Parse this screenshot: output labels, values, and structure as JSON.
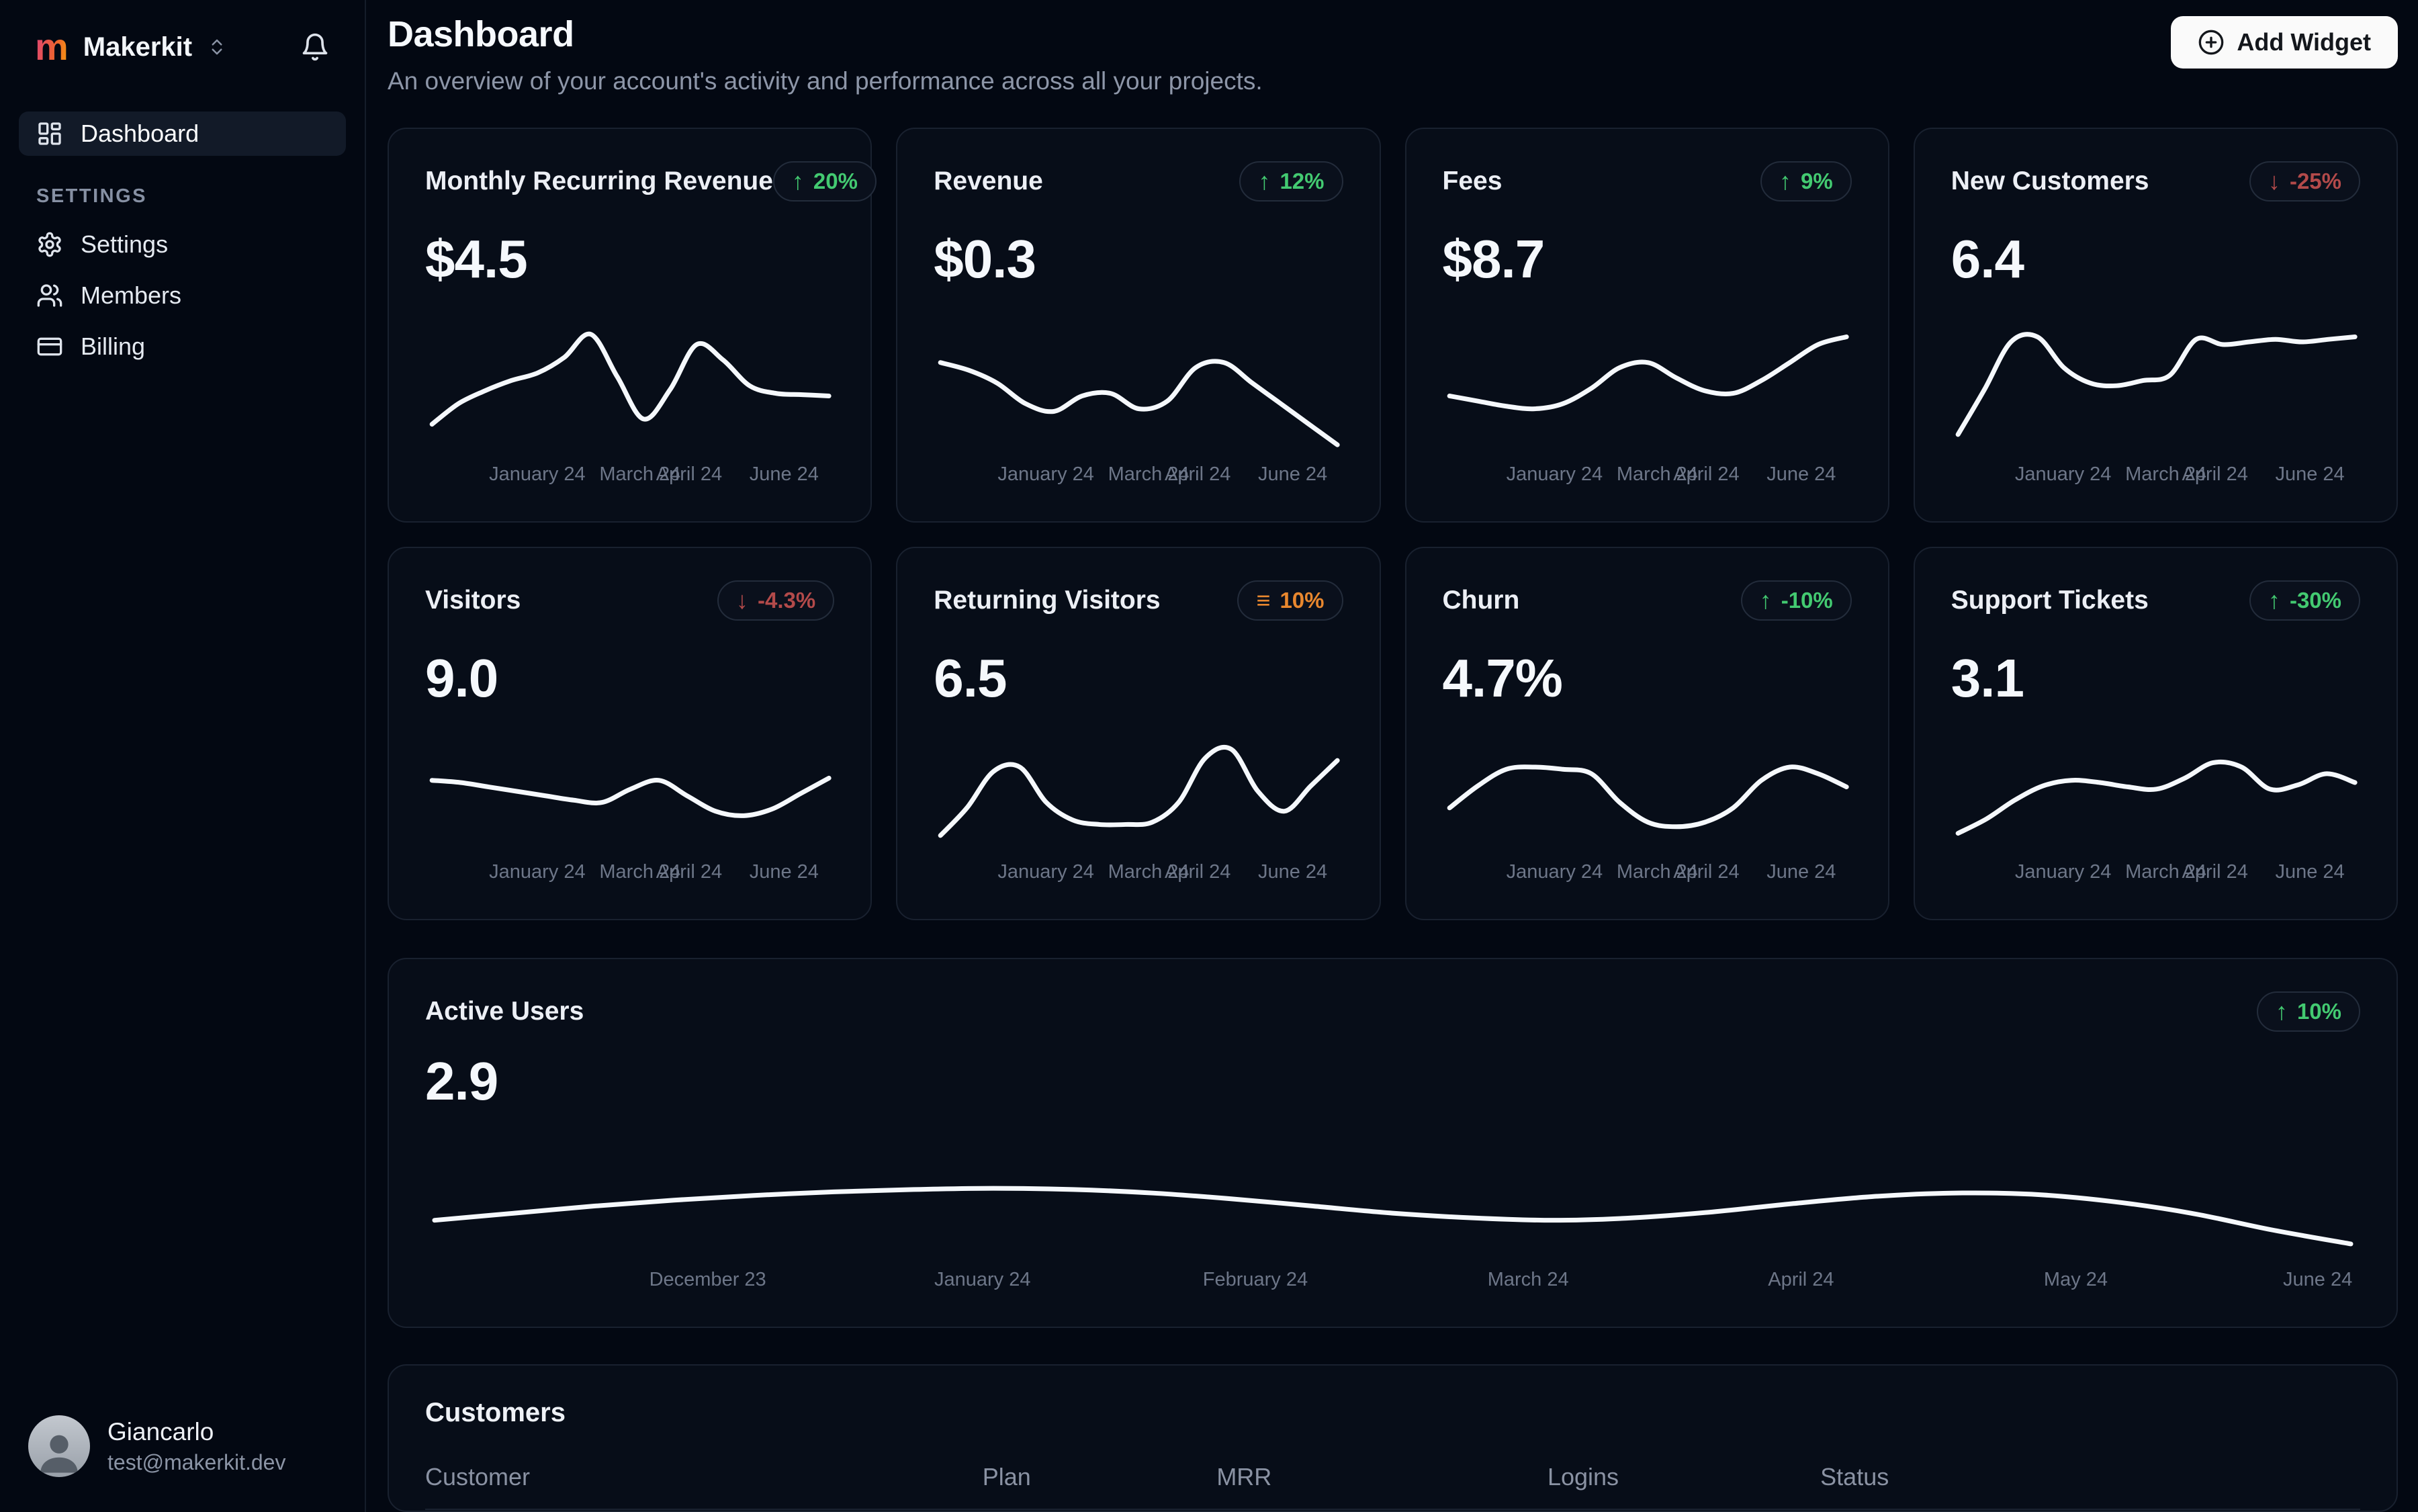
{
  "colors": {
    "positive": "#43ca71",
    "negative": "#b34a4a",
    "warning": "#e8872e",
    "brand_gradient_from": "#e0486d",
    "brand_gradient_to": "#f59e0b",
    "primary_button_bg": "#fafafa"
  },
  "sidebar": {
    "brand": "Makerkit",
    "settings_section_label": "SETTINGS",
    "items": [
      {
        "label": "Dashboard",
        "icon": "layout-dashboard",
        "active": true
      },
      {
        "label": "Settings",
        "icon": "gear",
        "active": false
      },
      {
        "label": "Members",
        "icon": "users",
        "active": false
      },
      {
        "label": "Billing",
        "icon": "credit-card",
        "active": false
      }
    ],
    "user": {
      "name": "Giancarlo",
      "email": "test@makerkit.dev"
    }
  },
  "header": {
    "title": "Dashboard",
    "subtitle": "An overview of your account's activity and performance across all your projects.",
    "add_widget_label": "Add Widget"
  },
  "stat_cards": [
    {
      "title": "Monthly Recurring Revenue",
      "value": "$4.5",
      "badge": {
        "text": "20%",
        "trend": "up",
        "color": "green"
      },
      "chart": "mrr"
    },
    {
      "title": "Revenue",
      "value": "$0.3",
      "badge": {
        "text": "12%",
        "trend": "up",
        "color": "green"
      },
      "chart": "revenue"
    },
    {
      "title": "Fees",
      "value": "$8.7",
      "badge": {
        "text": "9%",
        "trend": "up",
        "color": "green"
      },
      "chart": "fees"
    },
    {
      "title": "New Customers",
      "value": "6.4",
      "badge": {
        "text": "-25%",
        "trend": "down",
        "color": "red"
      },
      "chart": "new_customers"
    },
    {
      "title": "Visitors",
      "value": "9.0",
      "badge": {
        "text": "-4.3%",
        "trend": "down",
        "color": "red"
      },
      "chart": "visitors"
    },
    {
      "title": "Returning Visitors",
      "value": "6.5",
      "badge": {
        "text": "10%",
        "trend": "neutral",
        "color": "orange"
      },
      "chart": "returning_visitors"
    },
    {
      "title": "Churn",
      "value": "4.7%",
      "badge": {
        "text": "-10%",
        "trend": "up",
        "color": "green"
      },
      "chart": "churn"
    },
    {
      "title": "Support Tickets",
      "value": "3.1",
      "badge": {
        "text": "-30%",
        "trend": "up",
        "color": "green"
      },
      "chart": "support_tickets"
    }
  ],
  "active_users": {
    "title": "Active Users",
    "value": "2.9",
    "badge": {
      "text": "10%",
      "trend": "up",
      "color": "green"
    },
    "chart": "active_users"
  },
  "customers": {
    "title": "Customers",
    "columns": [
      "Customer",
      "Plan",
      "MRR",
      "Logins",
      "Status"
    ]
  },
  "chart_data": [
    {
      "id": "mrr",
      "type": "line",
      "title": "Monthly Recurring Revenue sparkline",
      "x_ticks": [
        "January 24",
        "March 24",
        "April 24",
        "June 24"
      ],
      "ylim": [
        0,
        1
      ],
      "values_norm": [
        0.18,
        0.34,
        0.44,
        0.52,
        0.58,
        0.7,
        0.88,
        0.55,
        0.22,
        0.45,
        0.8,
        0.68,
        0.48,
        0.42,
        0.41,
        0.4
      ]
    },
    {
      "id": "revenue",
      "type": "line",
      "title": "Revenue sparkline",
      "x_ticks": [
        "January 24",
        "March 24",
        "April 24",
        "June 24"
      ],
      "ylim": [
        0,
        1
      ],
      "values_norm": [
        0.66,
        0.6,
        0.5,
        0.34,
        0.28,
        0.4,
        0.42,
        0.3,
        0.36,
        0.62,
        0.66,
        0.5,
        0.34,
        0.18,
        0.02
      ]
    },
    {
      "id": "fees",
      "type": "line",
      "title": "Fees sparkline",
      "x_ticks": [
        "January 24",
        "March 24",
        "April 24",
        "June 24"
      ],
      "ylim": [
        0,
        1
      ],
      "values_norm": [
        0.4,
        0.36,
        0.32,
        0.3,
        0.34,
        0.46,
        0.62,
        0.66,
        0.54,
        0.44,
        0.42,
        0.52,
        0.66,
        0.8,
        0.86
      ]
    },
    {
      "id": "new_customers",
      "type": "line",
      "title": "New Customers sparkline",
      "x_ticks": [
        "January 24",
        "March 24",
        "April 24",
        "June 24"
      ],
      "ylim": [
        0,
        1
      ],
      "values_norm": [
        0.1,
        0.45,
        0.82,
        0.86,
        0.62,
        0.5,
        0.48,
        0.52,
        0.56,
        0.84,
        0.8,
        0.82,
        0.84,
        0.82,
        0.84,
        0.86
      ]
    },
    {
      "id": "visitors",
      "type": "line",
      "title": "Visitors sparkline",
      "x_ticks": [
        "January 24",
        "March 24",
        "April 24",
        "June 24"
      ],
      "ylim": [
        0,
        1
      ],
      "values_norm": [
        0.6,
        0.58,
        0.54,
        0.5,
        0.46,
        0.42,
        0.4,
        0.52,
        0.6,
        0.46,
        0.32,
        0.28,
        0.34,
        0.48,
        0.62
      ]
    },
    {
      "id": "returning_visitors",
      "type": "line",
      "title": "Returning Visitors sparkline",
      "x_ticks": [
        "January 24",
        "March 24",
        "April 24",
        "June 24"
      ],
      "ylim": [
        0,
        1
      ],
      "values_norm": [
        0.1,
        0.35,
        0.68,
        0.72,
        0.4,
        0.24,
        0.2,
        0.2,
        0.22,
        0.4,
        0.8,
        0.88,
        0.5,
        0.32,
        0.55,
        0.78
      ]
    },
    {
      "id": "churn",
      "type": "line",
      "title": "Churn sparkline",
      "x_ticks": [
        "January 24",
        "March 24",
        "April 24",
        "June 24"
      ],
      "ylim": [
        0,
        1
      ],
      "values_norm": [
        0.35,
        0.55,
        0.7,
        0.72,
        0.7,
        0.66,
        0.4,
        0.22,
        0.18,
        0.22,
        0.35,
        0.6,
        0.72,
        0.66,
        0.54
      ]
    },
    {
      "id": "support_tickets",
      "type": "line",
      "title": "Support Tickets sparkline",
      "x_ticks": [
        "January 24",
        "March 24",
        "April 24",
        "June 24"
      ],
      "ylim": [
        0,
        1
      ],
      "values_norm": [
        0.12,
        0.25,
        0.42,
        0.55,
        0.6,
        0.58,
        0.54,
        0.52,
        0.62,
        0.76,
        0.72,
        0.52,
        0.56,
        0.66,
        0.58
      ]
    },
    {
      "id": "active_users",
      "type": "line",
      "title": "Active Users sparkline",
      "x_ticks": [
        "December 23",
        "January 24",
        "February 24",
        "March 24",
        "April 24",
        "May 24",
        "June 24"
      ],
      "ylim": [
        0,
        1
      ],
      "values_norm": [
        0.3,
        0.36,
        0.42,
        0.47,
        0.51,
        0.54,
        0.56,
        0.57,
        0.56,
        0.53,
        0.48,
        0.42,
        0.36,
        0.32,
        0.3,
        0.32,
        0.37,
        0.44,
        0.5,
        0.53,
        0.52,
        0.46,
        0.36,
        0.22,
        0.1
      ]
    }
  ]
}
